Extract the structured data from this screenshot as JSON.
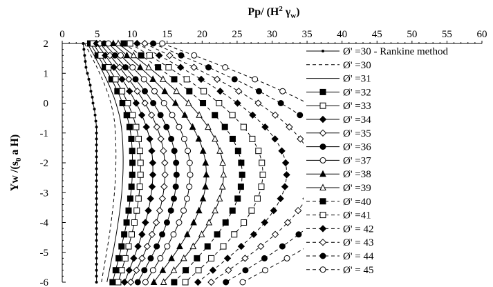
{
  "chart_data": {
    "type": "line",
    "xlabel": "Pp/ (H² γw)",
    "ylabel": "Yw /(s0 a H)",
    "xlim": [
      0,
      60
    ],
    "ylim": [
      -6,
      2
    ],
    "xticks": [
      "0",
      "5",
      "10",
      "15",
      "20",
      "25",
      "30",
      "35",
      "40",
      "45",
      "50",
      "55",
      "60"
    ],
    "yticks": [
      "2",
      "1",
      "0",
      "-1",
      "-2",
      "-3",
      "-4",
      "-5",
      "-6"
    ],
    "x_axis_position": "top",
    "grid": false,
    "legend_position": "right",
    "y": [
      2.0,
      1.8,
      1.6,
      1.4,
      1.2,
      1.0,
      0.8,
      0.6,
      0.4,
      0.2,
      0.0,
      -0.2,
      -0.4,
      -0.6,
      -0.8,
      -1.0,
      -1.2,
      -1.4,
      -1.6,
      -1.8,
      -2.0,
      -2.2,
      -2.4,
      -2.6,
      -2.8,
      -3.0,
      -3.2,
      -3.4,
      -3.6,
      -3.8,
      -4.0,
      -4.2,
      -4.4,
      -4.6,
      -4.8,
      -5.0,
      -5.2,
      -5.4,
      -5.6,
      -5.8,
      -6.0
    ],
    "series": [
      {
        "name": "Ø' =30 - Rankine method",
        "style": "solid",
        "marker": "dot",
        "x": [
          3.0,
          3.1,
          3.2,
          3.3,
          3.4,
          3.6,
          3.8,
          4.0,
          4.1,
          4.3,
          4.4,
          4.6,
          4.7,
          4.8,
          4.9,
          4.9,
          4.9,
          4.9,
          4.9,
          4.9,
          4.9,
          4.9,
          4.9,
          4.9,
          4.9,
          4.9,
          4.9,
          4.9,
          4.9,
          4.9,
          4.9,
          4.9,
          4.9,
          4.9,
          4.9,
          4.9,
          4.9,
          4.9,
          4.9,
          4.9,
          4.9
        ]
      },
      {
        "name": "Ø' =30",
        "style": "dashed",
        "marker": "none",
        "params": [
          3.2,
          3.5,
          -0.8,
          5.6
        ]
      },
      {
        "name": "Ø' =31",
        "style": "solid",
        "marker": "none",
        "params": [
          3.6,
          3.9,
          -1.0,
          6.4
        ]
      },
      {
        "name": "Ø' =32",
        "style": "solid",
        "marker": "square-filled",
        "params": [
          4.0,
          4.6,
          -1.2,
          7.2
        ]
      },
      {
        "name": "Ø' =33",
        "style": "solid",
        "marker": "square-open",
        "params": [
          4.4,
          5.1,
          -1.4,
          8.0
        ]
      },
      {
        "name": "Ø' =34",
        "style": "solid",
        "marker": "diamond-filled",
        "params": [
          4.9,
          6.1,
          -1.6,
          8.9
        ]
      },
      {
        "name": "Ø' =35",
        "style": "solid",
        "marker": "diamond-open",
        "params": [
          5.4,
          7.1,
          -1.7,
          9.8
        ]
      },
      {
        "name": "Ø' =36",
        "style": "solid",
        "marker": "circle-filled",
        "params": [
          6.0,
          7.9,
          -1.8,
          10.8
        ]
      },
      {
        "name": "Ø' =37",
        "style": "solid",
        "marker": "circle-open",
        "params": [
          6.6,
          9.0,
          -1.8,
          11.9
        ]
      },
      {
        "name": "Ø' =38",
        "style": "solid",
        "marker": "triangle-filled",
        "params": [
          7.3,
          10.3,
          -1.9,
          13.1
        ]
      },
      {
        "name": "Ø' =39",
        "style": "solid",
        "marker": "triangle-open",
        "params": [
          8.0,
          11.7,
          -1.9,
          14.5
        ]
      },
      {
        "name": "Ø' =40",
        "style": "dashed",
        "marker": "square-filled",
        "params": [
          8.8,
          13.2,
          -1.9,
          16.0
        ]
      },
      {
        "name": "Ø' =41",
        "style": "dashed",
        "marker": "square-open",
        "params": [
          9.7,
          14.9,
          -1.9,
          17.6
        ]
      },
      {
        "name": "Ø' = 42",
        "style": "dashed",
        "marker": "diamond-filled",
        "params": [
          10.7,
          16.9,
          -1.9,
          19.4
        ]
      },
      {
        "name": "Ø' = 43",
        "style": "dashed",
        "marker": "diamond-open",
        "params": [
          11.8,
          19.2,
          -1.9,
          21.3
        ]
      },
      {
        "name": "Ø' = 44",
        "style": "dashed",
        "marker": "circle-filled",
        "params": [
          13.0,
          21.7,
          -1.9,
          23.4
        ]
      },
      {
        "name": "Ø' = 45",
        "style": "dashed",
        "marker": "circle-open",
        "params": [
          14.3,
          24.8,
          -1.9,
          25.8
        ]
      }
    ]
  }
}
